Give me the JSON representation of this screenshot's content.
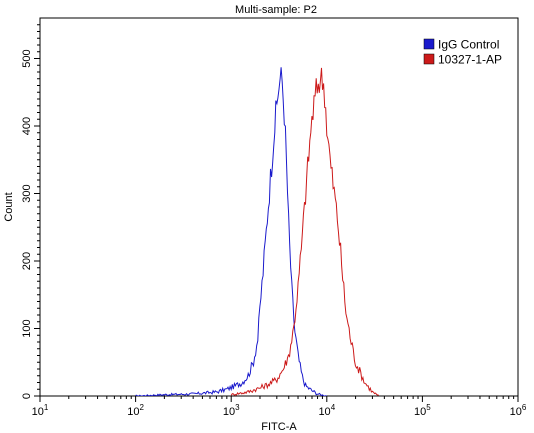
{
  "chart_data": {
    "type": "line",
    "title": "Multi-sample: P2",
    "xlabel": "FITC-A",
    "ylabel": "Count",
    "x_scale": "log",
    "xlim": [
      10,
      1000000
    ],
    "ylim": [
      0,
      560
    ],
    "x_ticks": [
      {
        "base": "10",
        "exp": "1",
        "value": 10
      },
      {
        "base": "10",
        "exp": "2",
        "value": 100
      },
      {
        "base": "10",
        "exp": "3",
        "value": 1000
      },
      {
        "base": "10",
        "exp": "4",
        "value": 10000
      },
      {
        "base": "10",
        "exp": "5",
        "value": 100000
      },
      {
        "base": "10",
        "exp": "6",
        "value": 1000000
      }
    ],
    "y_ticks": [
      "0",
      "100",
      "200",
      "300",
      "400",
      "500"
    ],
    "legend_position": "top-right",
    "series": [
      {
        "name": "IgG Control",
        "color": "#1a1acc",
        "x": [
          100,
          200,
          400,
          700,
          900,
          1100,
          1300,
          1500,
          1700,
          1900,
          2000,
          2200,
          2400,
          2600,
          2800,
          3000,
          3200,
          3400,
          3600,
          3800,
          4000,
          4300,
          4600,
          5000,
          5500,
          6000,
          7000,
          8000,
          10000
        ],
        "y": [
          0,
          2,
          3,
          6,
          10,
          15,
          20,
          30,
          50,
          85,
          130,
          200,
          270,
          330,
          390,
          430,
          470,
          470,
          420,
          340,
          250,
          160,
          100,
          60,
          30,
          15,
          8,
          3,
          0
        ]
      },
      {
        "name": "10327-1-AP",
        "color": "#cc1a1a",
        "x": [
          1000,
          1500,
          2000,
          2500,
          3000,
          3500,
          4000,
          4500,
          5000,
          5500,
          6000,
          6500,
          7000,
          7500,
          8000,
          8500,
          9000,
          9500,
          10000,
          11000,
          12000,
          13000,
          14000,
          15000,
          16000,
          18000,
          20000,
          25000,
          30000,
          35000
        ],
        "y": [
          2,
          6,
          12,
          18,
          25,
          40,
          60,
          100,
          160,
          230,
          300,
          360,
          410,
          440,
          460,
          470,
          470,
          450,
          400,
          340,
          300,
          260,
          210,
          160,
          120,
          80,
          50,
          20,
          6,
          0
        ]
      }
    ]
  }
}
